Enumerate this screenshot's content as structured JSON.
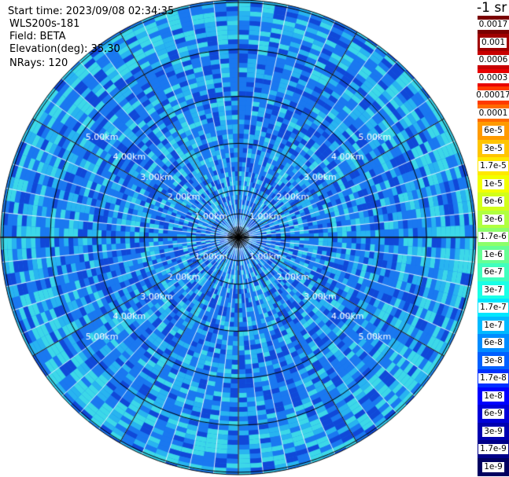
{
  "info": {
    "start_time": "Start time: 2023/09/08 02:34:35",
    "radar": "WLS200s-181",
    "field": "Field: BETA",
    "elevation": "Elevation(deg): 35.30",
    "nrays": "NRays: 120"
  },
  "units_title": "-1 sr",
  "range_labels": [
    "1.00km",
    "2.00km",
    "3.00km",
    "4.00km",
    "5.00km"
  ],
  "range_rings_km": [
    1,
    2,
    3,
    4,
    5
  ],
  "colorbar": {
    "labels": [
      "0.0017",
      "0.001",
      "0.0006",
      "0.0003",
      "0.00017",
      "0.0001",
      "6e-5",
      "3e-5",
      "1.7e-5",
      "1e-5",
      "6e-6",
      "3e-6",
      "1.7e-6",
      "1e-6",
      "6e-7",
      "3e-7",
      "1.7e-7",
      "1e-7",
      "6e-8",
      "3e-8",
      "1.7e-8",
      "1e-8",
      "6e-9",
      "3e-9",
      "1.7e-9",
      "1e-9"
    ],
    "colors": [
      "#7a0000",
      "#a00000",
      "#c80000",
      "#e80000",
      "#ff3a00",
      "#ff6a00",
      "#ff9a00",
      "#ffc400",
      "#ffe800",
      "#f2ff00",
      "#d2ff1a",
      "#b0ff40",
      "#8cff6a",
      "#66ff94",
      "#40ffbe",
      "#1affe6",
      "#00e6ff",
      "#00baff",
      "#008cff",
      "#0060ff",
      "#0030ff",
      "#0000ff",
      "#0000d8",
      "#0000b0",
      "#000088",
      "#000060"
    ]
  },
  "colors": {
    "data_main": "#1a78f0",
    "data_dark": "#1048d8",
    "data_light": "#28b4f0",
    "data_cyan": "#3cd8e8",
    "grid": "#000000",
    "range_label": "#ffffff"
  }
}
